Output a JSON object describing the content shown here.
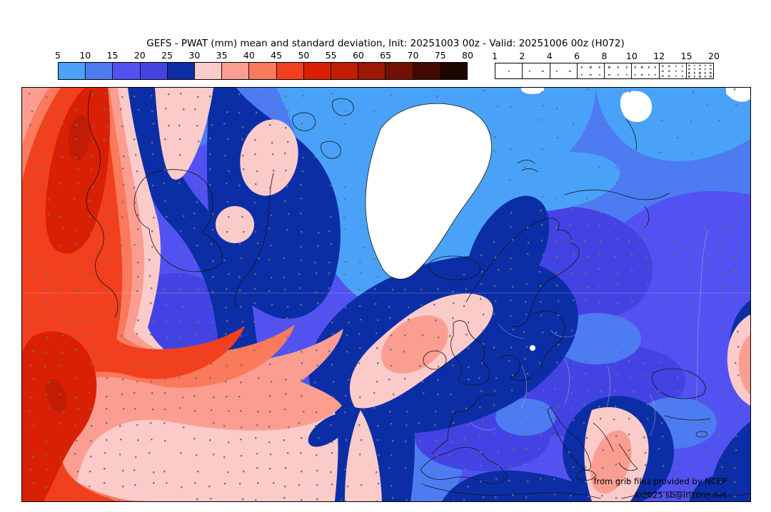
{
  "title": "GEFS - PWAT (mm) mean and standard deviation, Init: 20251003 00z - Valid: 20251006 00z (H072)",
  "colorbar": {
    "tick_labels": [
      "5",
      "10",
      "15",
      "20",
      "25",
      "30",
      "35",
      "40",
      "45",
      "50",
      "55",
      "60",
      "65",
      "70",
      "75",
      "80"
    ],
    "colors": [
      "#49a2f8",
      "#4d7bf2",
      "#5252f3",
      "#4343e4",
      "#0b2ea6",
      "#fbcbc9",
      "#fb9e91",
      "#fa7a5b",
      "#f23f1d",
      "#da2004",
      "#c11c04",
      "#9e1604",
      "#731004",
      "#440a02",
      "#1d0500"
    ]
  },
  "stipple_legend": {
    "tick_labels": [
      "1",
      "2",
      "4",
      "6",
      "8",
      "10",
      "12",
      "15",
      "20"
    ],
    "cell_dot_counts": [
      1,
      2,
      2,
      6,
      6,
      8,
      12,
      20
    ],
    "dot_color": "#6f6f6f"
  },
  "map": {
    "below_min_color": "#ffffff",
    "stipple_dot_color": "#6f6f6f",
    "coastline_color": "#141414",
    "country_border_color": "#a9aec6",
    "graticule_color": "#cfd4e2",
    "frame_color": "#000000",
    "region_notes": {
      "left": "high PWAT 45-60mm system over west Atlantic",
      "center": "dry band 25-30mm wrapping from Canada around UK",
      "greenland": "below 5mm (white)",
      "europe": "15-25mm",
      "sicily": "30-40mm patch"
    }
  },
  "credits": {
    "line1": "from grib files provided by NCEP",
    "line2": "©2025 sb@irizone.net"
  }
}
